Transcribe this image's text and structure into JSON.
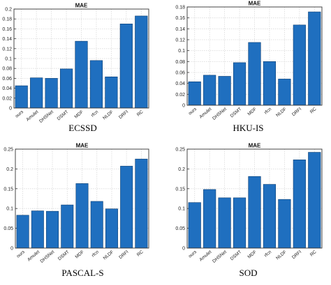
{
  "chart_data": [
    {
      "type": "bar",
      "title": "MAE",
      "caption": "ECSSD",
      "categories": [
        "ours",
        "Amulet",
        "DHSNet",
        "DSMT",
        "MDF",
        "rfcn",
        "NLDF",
        "DRFI",
        "RC"
      ],
      "values": [
        0.045,
        0.061,
        0.06,
        0.079,
        0.135,
        0.096,
        0.063,
        0.17,
        0.186
      ],
      "ylim": [
        0,
        0.2
      ],
      "yticks": [
        "0",
        "0.02",
        "0.04",
        "0.06",
        "0.08",
        "0.1",
        "0.12",
        "0.14",
        "0.16",
        "0.18",
        "0.2"
      ],
      "ytick_values": [
        0,
        0.02,
        0.04,
        0.06,
        0.08,
        0.1,
        0.12,
        0.14,
        0.16,
        0.18,
        0.2
      ],
      "grid": true,
      "bar_color": "#1f6fbf"
    },
    {
      "type": "bar",
      "title": "MAE",
      "caption": "HKU-IS",
      "categories": [
        "ours",
        "Amulet",
        "DHSNet",
        "DSMT",
        "MDF",
        "rfcn",
        "NLDF",
        "DRFI",
        "RC"
      ],
      "values": [
        0.043,
        0.055,
        0.053,
        0.078,
        0.115,
        0.08,
        0.048,
        0.147,
        0.171
      ],
      "ylim": [
        0,
        0.18
      ],
      "yticks": [
        "0",
        "0.02",
        "0.04",
        "0.06",
        "0.08",
        "0.1",
        "0.12",
        "0.14",
        "0.16",
        "0.18"
      ],
      "ytick_values": [
        0,
        0.02,
        0.04,
        0.06,
        0.08,
        0.1,
        0.12,
        0.14,
        0.16,
        0.18
      ],
      "grid": true,
      "bar_color": "#1f6fbf"
    },
    {
      "type": "bar",
      "title": "MAE",
      "caption": "PASCAL-S",
      "categories": [
        "ours",
        "Amulet",
        "DHSNet",
        "DSMT",
        "MDF",
        "rfcn",
        "NLDF",
        "DRFI",
        "RC"
      ],
      "values": [
        0.083,
        0.094,
        0.093,
        0.109,
        0.163,
        0.118,
        0.099,
        0.207,
        0.225
      ],
      "ylim": [
        0,
        0.25
      ],
      "yticks": [
        "0",
        "0.05",
        "0.1",
        "0.15",
        "0.2",
        "0.25"
      ],
      "ytick_values": [
        0,
        0.05,
        0.1,
        0.15,
        0.2,
        0.25
      ],
      "grid": true,
      "bar_color": "#1f6fbf"
    },
    {
      "type": "bar",
      "title": "MAE",
      "caption": "SOD",
      "categories": [
        "ours",
        "Amulet",
        "DHSNet",
        "DSMT",
        "MDF",
        "rfcn",
        "NLDF",
        "DRFI",
        "RC"
      ],
      "values": [
        0.115,
        0.148,
        0.127,
        0.127,
        0.181,
        0.161,
        0.123,
        0.223,
        0.242
      ],
      "ylim": [
        0,
        0.25
      ],
      "yticks": [
        "0",
        "0.05",
        "0.1",
        "0.15",
        "0.2",
        "0.25"
      ],
      "ytick_values": [
        0,
        0.05,
        0.1,
        0.15,
        0.2,
        0.25
      ],
      "grid": true,
      "bar_color": "#1f6fbf"
    }
  ]
}
